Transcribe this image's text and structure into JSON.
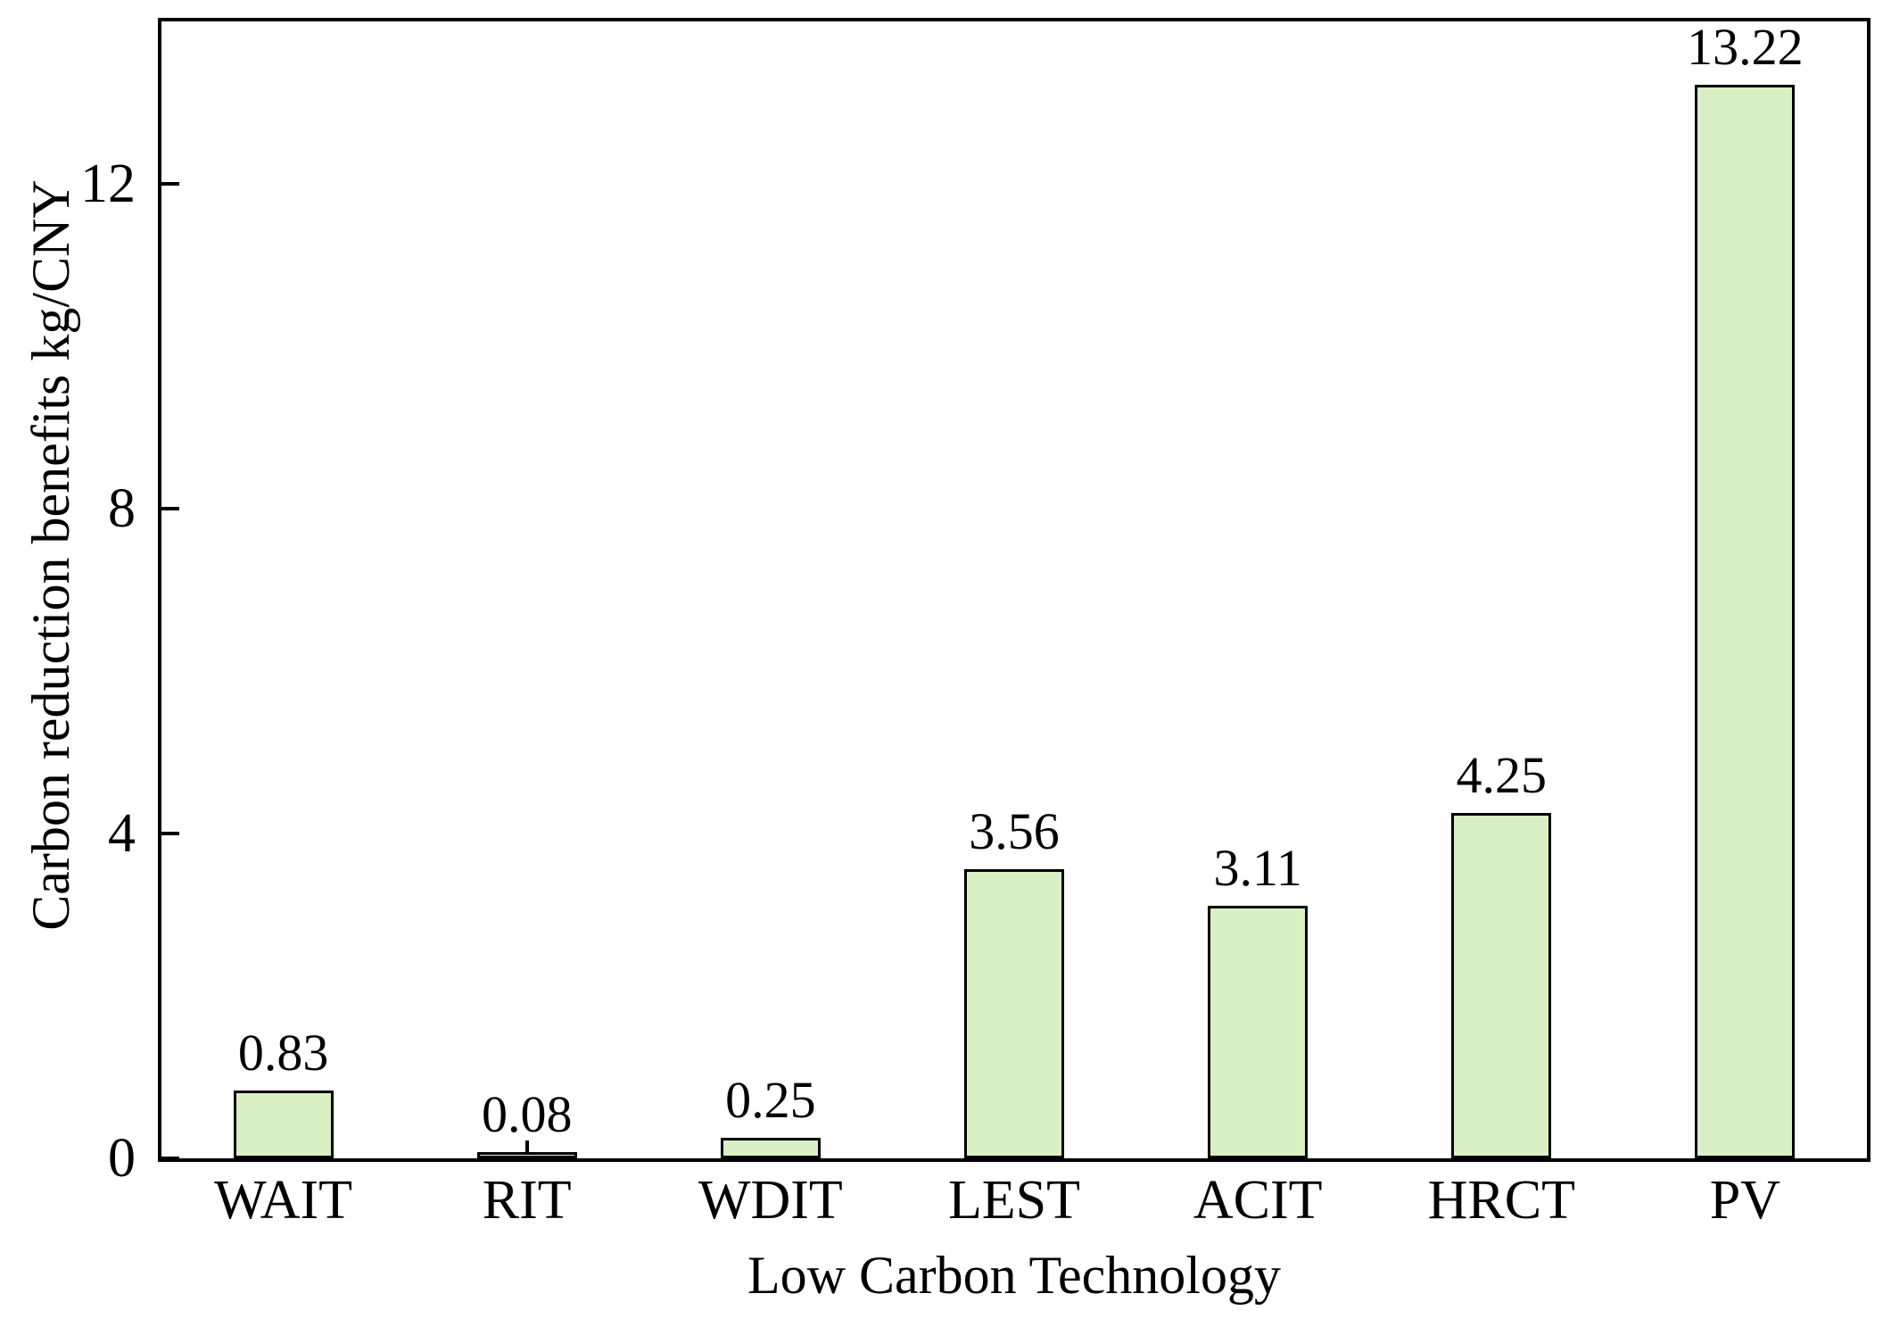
{
  "chart_data": {
    "type": "bar",
    "categories": [
      "WAIT",
      "RIT",
      "WDIT",
      "LEST",
      "ACIT",
      "HRCT",
      "PV"
    ],
    "values": [
      0.83,
      0.08,
      0.25,
      3.56,
      3.11,
      4.25,
      13.22
    ],
    "value_labels": [
      "0.83",
      "0.08",
      "0.25",
      "3.56",
      "3.11",
      "4.25",
      "13.22"
    ],
    "title": "",
    "xlabel": "Low Carbon Technology",
    "ylabel": "Carbon reduction benefits kg/CNY",
    "ylim": [
      0,
      14
    ],
    "yticks": [
      0,
      4,
      8,
      12
    ],
    "ytick_labels": [
      "0",
      "4",
      "8",
      "12"
    ],
    "grid": false,
    "legend_position": "none",
    "colors": {
      "bar_fill": "#d9f0c4",
      "bar_border": "#000000",
      "axis": "#000000",
      "text": "#000000",
      "background": "#ffffff"
    }
  }
}
